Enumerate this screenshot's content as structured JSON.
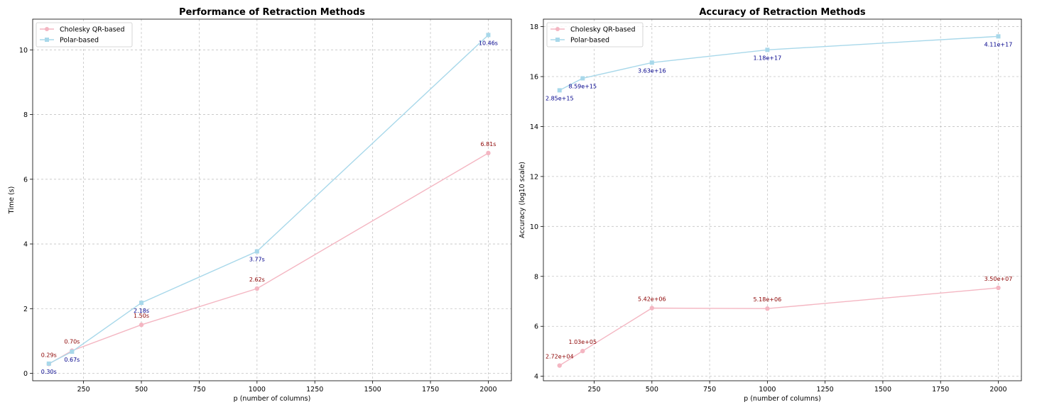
{
  "colors": {
    "cholesky": "#f4b6c2",
    "polar": "#a8d8ea",
    "cholesky_label": "#8b0000",
    "polar_label": "#00008b"
  },
  "chart_data": [
    {
      "type": "line",
      "title": "Performance of Retraction Methods",
      "xlabel": "p (number of columns)",
      "ylabel": "Time (s)",
      "xlim": [
        30,
        2100
      ],
      "ylim": [
        -0.23,
        10.95
      ],
      "xticks": [
        250,
        500,
        750,
        1000,
        1250,
        1500,
        1750,
        2000
      ],
      "yticks": [
        0,
        2,
        4,
        6,
        8,
        10
      ],
      "grid": true,
      "legend_position": "top-left",
      "x": [
        100,
        200,
        500,
        1000,
        2000
      ],
      "series": [
        {
          "name": "Cholesky QR-based",
          "marker": "circle",
          "color_key": "cholesky",
          "label_color_key": "cholesky_label",
          "label_placement": "above",
          "values": [
            0.29,
            0.7,
            1.5,
            2.62,
            6.81
          ],
          "labels": [
            "0.29s",
            "0.70s",
            "1.50s",
            "2.62s",
            "6.81s"
          ]
        },
        {
          "name": "Polar-based",
          "marker": "square",
          "color_key": "polar",
          "label_color_key": "polar_label",
          "label_placement": "below",
          "values": [
            0.3,
            0.67,
            2.18,
            3.77,
            10.46
          ],
          "labels": [
            "0.30s",
            "0.67s",
            "2.18s",
            "3.77s",
            "10.46s"
          ]
        }
      ]
    },
    {
      "type": "line",
      "title": "Accuracy of Retraction Methods",
      "xlabel": "p (number of columns)",
      "ylabel": "Accuracy (log10 scale)",
      "xlim": [
        30,
        2100
      ],
      "ylim": [
        3.82,
        18.3
      ],
      "xticks": [
        250,
        500,
        750,
        1000,
        1250,
        1500,
        1750,
        2000
      ],
      "yticks": [
        4,
        6,
        8,
        10,
        12,
        14,
        16,
        18
      ],
      "grid": true,
      "legend_position": "top-left",
      "x": [
        100,
        200,
        500,
        1000,
        2000
      ],
      "series": [
        {
          "name": "Cholesky QR-based",
          "marker": "circle",
          "color_key": "cholesky",
          "label_color_key": "cholesky_label",
          "label_placement": "above",
          "values": [
            4.43,
            5.01,
            6.73,
            6.71,
            7.54
          ],
          "labels": [
            "2.72e+04",
            "1.03e+05",
            "5.42e+06",
            "5.18e+06",
            "3.50e+07"
          ]
        },
        {
          "name": "Polar-based",
          "marker": "square",
          "color_key": "polar",
          "label_color_key": "polar_label",
          "label_placement": "below",
          "values": [
            15.45,
            15.93,
            16.56,
            17.07,
            17.61
          ],
          "labels": [
            "2.85e+15",
            "8.59e+15",
            "3.63e+16",
            "1.18e+17",
            "4.11e+17"
          ]
        }
      ]
    }
  ]
}
